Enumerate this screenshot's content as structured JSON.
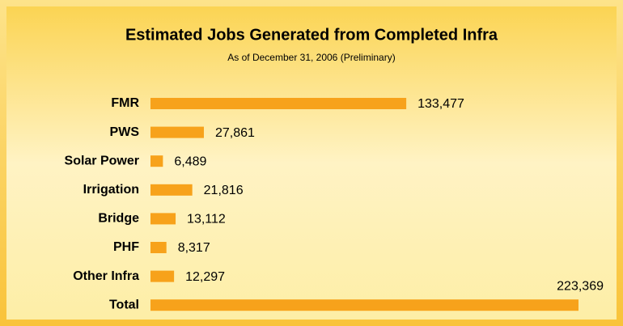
{
  "chart_data": {
    "type": "bar",
    "orientation": "horizontal",
    "title": "Estimated Jobs Generated from Completed Infra",
    "subtitle": "As of December 31, 2006 (Preliminary)",
    "categories": [
      "FMR",
      "PWS",
      "Solar Power",
      "Irrigation",
      "Bridge",
      "PHF",
      "Other Infra",
      "Total"
    ],
    "values": [
      133477,
      27861,
      6489,
      21816,
      13112,
      8317,
      12297,
      223369
    ],
    "value_labels": [
      "133,477",
      "27,861",
      "6,489",
      "21,816",
      "13,112",
      "8,317",
      "12,297",
      "223,369"
    ],
    "color": "#f7a21b"
  }
}
